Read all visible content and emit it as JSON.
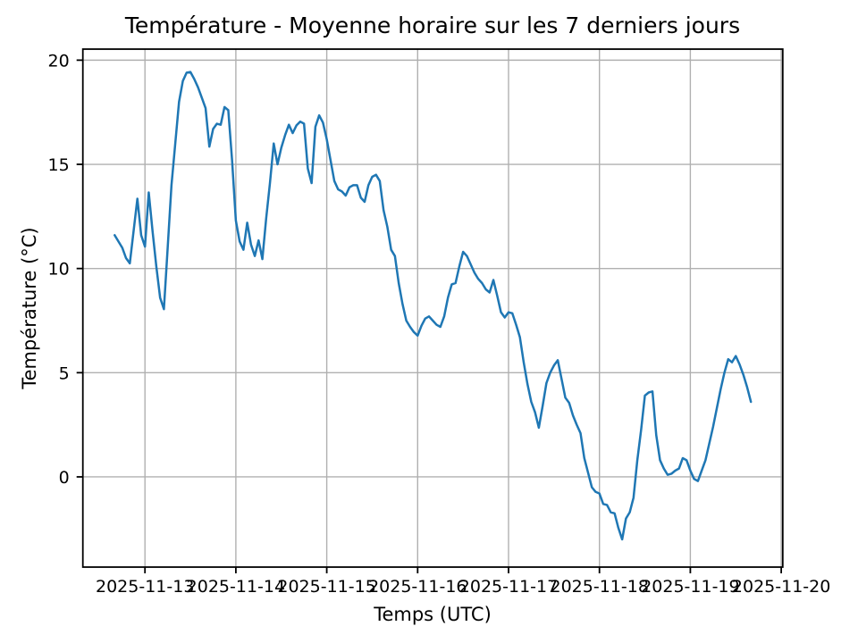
{
  "figure": {
    "background": "#ffffff"
  },
  "chart_data": {
    "type": "line",
    "title": "Température - Moyenne horaire sur les 7 derniers jours",
    "xlabel": "Temps (UTC)",
    "ylabel": "Température (°C)",
    "legend": null,
    "grid": true,
    "grid_color": "#b0b0b0",
    "spine_color": "#000000",
    "line_color": "#1f77b4",
    "line_width": 2.5,
    "x_start": "2025-11-12 16:00 UTC",
    "x_step_hours": 1,
    "x_tick_positions_hours": [
      8,
      32,
      56,
      80,
      104,
      128,
      152,
      176
    ],
    "x_tick_labels": [
      "2025-11-13",
      "2025-11-14",
      "2025-11-15",
      "2025-11-16",
      "2025-11-17",
      "2025-11-18",
      "2025-11-19",
      "2025-11-20"
    ],
    "y_ticks": [
      0,
      5,
      10,
      15,
      20
    ],
    "y_tick_labels": [
      "0",
      "5",
      "10",
      "15",
      "20"
    ],
    "xlim_hours": [
      -8.4,
      176.4
    ],
    "ylim": [
      -4.33,
      20.53
    ],
    "series": [
      {
        "name": "temperature_moyenne_horaire",
        "unit": "°C",
        "values": [
          11.6,
          11.3,
          11.0,
          10.5,
          10.25,
          11.8,
          13.35,
          11.6,
          11.05,
          13.65,
          11.8,
          10.1,
          8.6,
          8.05,
          11.0,
          14.0,
          16.0,
          18.0,
          19.0,
          19.4,
          19.43,
          19.1,
          18.7,
          18.2,
          17.7,
          15.85,
          16.7,
          16.95,
          16.9,
          17.75,
          17.6,
          15.2,
          12.3,
          11.3,
          10.9,
          12.2,
          11.15,
          10.6,
          11.35,
          10.45,
          12.4,
          14.1,
          16.0,
          15.0,
          15.8,
          16.4,
          16.9,
          16.5,
          16.87,
          17.05,
          16.95,
          14.8,
          14.1,
          16.8,
          17.35,
          17.0,
          16.2,
          15.2,
          14.2,
          13.8,
          13.7,
          13.5,
          13.9,
          14.0,
          14.0,
          13.4,
          13.2,
          14.0,
          14.4,
          14.5,
          14.2,
          12.8,
          12.0,
          10.9,
          10.6,
          9.3,
          8.3,
          7.5,
          7.2,
          6.95,
          6.78,
          7.25,
          7.6,
          7.7,
          7.5,
          7.3,
          7.2,
          7.7,
          8.6,
          9.24,
          9.3,
          10.1,
          10.8,
          10.6,
          10.2,
          9.8,
          9.5,
          9.3,
          9.0,
          8.85,
          9.45,
          8.7,
          7.9,
          7.65,
          7.9,
          7.85,
          7.3,
          6.7,
          5.5,
          4.45,
          3.6,
          3.1,
          2.36,
          3.4,
          4.5,
          5.0,
          5.35,
          5.6,
          4.7,
          3.8,
          3.55,
          2.95,
          2.5,
          2.1,
          0.9,
          0.2,
          -0.5,
          -0.72,
          -0.8,
          -1.3,
          -1.35,
          -1.7,
          -1.75,
          -2.45,
          -3.0,
          -2.0,
          -1.7,
          -1.0,
          0.8,
          2.25,
          3.9,
          4.05,
          4.1,
          2.0,
          0.8,
          0.4,
          0.1,
          0.15,
          0.3,
          0.4,
          0.9,
          0.8,
          0.3,
          -0.1,
          -0.2,
          0.3,
          0.8,
          1.6,
          2.4,
          3.3,
          4.2,
          5.0,
          5.65,
          5.5,
          5.8,
          5.4,
          4.9,
          4.3,
          3.6
        ]
      }
    ]
  }
}
